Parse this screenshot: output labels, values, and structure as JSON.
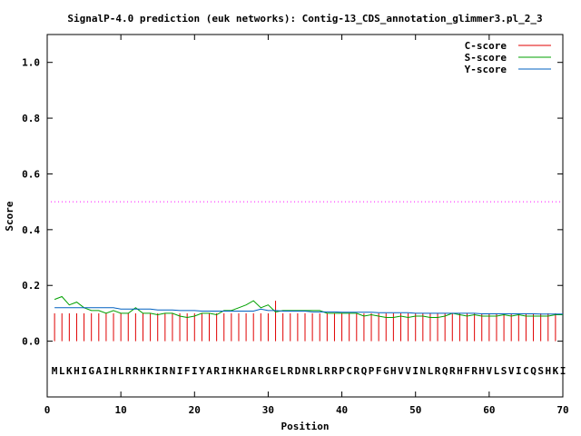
{
  "chart_data": {
    "type": "line",
    "title": "SignalP-4.0 prediction (euk networks): Contig-13_CDS_annotation_glimmer3.pl_2_3",
    "xlabel": "Position",
    "ylabel": "Score",
    "xlim": [
      0,
      70
    ],
    "ylim": [
      -0.2,
      1.1
    ],
    "xticks": [
      0,
      10,
      20,
      30,
      40,
      50,
      60,
      70
    ],
    "yticks": [
      0.0,
      0.2,
      0.4,
      0.6,
      0.8,
      1.0
    ],
    "ytick_labels": [
      "0.0",
      "0.2",
      "0.4",
      "0.6",
      "0.8",
      "1.0"
    ],
    "legend_position": "top-right",
    "threshold": 0.5,
    "threshold_color": "#ff00ff",
    "sequence": "MLKHIGAIHLRRHKIRNIFIYARIHKHARGELRDNRLRRPCRQPFGHVVINLRQRHFRHVLSVICQSHKI",
    "series": [
      {
        "name": "C-score",
        "color": "#e00000",
        "style": "impulse",
        "x": [
          1,
          2,
          3,
          4,
          5,
          6,
          7,
          8,
          9,
          10,
          11,
          12,
          13,
          14,
          15,
          16,
          17,
          18,
          19,
          20,
          21,
          22,
          23,
          24,
          25,
          26,
          27,
          28,
          29,
          30,
          31,
          32,
          33,
          34,
          35,
          36,
          37,
          38,
          39,
          40,
          41,
          42,
          43,
          44,
          45,
          46,
          47,
          48,
          49,
          50,
          51,
          52,
          53,
          54,
          55,
          56,
          57,
          58,
          59,
          60,
          61,
          62,
          63,
          64,
          65,
          66,
          67,
          68,
          69
        ],
        "values": [
          0.1,
          0.1,
          0.1,
          0.1,
          0.1,
          0.1,
          0.1,
          0.1,
          0.1,
          0.1,
          0.1,
          0.1,
          0.1,
          0.1,
          0.1,
          0.1,
          0.1,
          0.1,
          0.1,
          0.1,
          0.1,
          0.1,
          0.1,
          0.1,
          0.1,
          0.1,
          0.1,
          0.1,
          0.1,
          0.1,
          0.145,
          0.1,
          0.1,
          0.1,
          0.1,
          0.1,
          0.1,
          0.1,
          0.1,
          0.1,
          0.1,
          0.1,
          0.1,
          0.1,
          0.1,
          0.1,
          0.1,
          0.1,
          0.1,
          0.1,
          0.1,
          0.1,
          0.1,
          0.1,
          0.1,
          0.1,
          0.1,
          0.1,
          0.1,
          0.1,
          0.1,
          0.1,
          0.1,
          0.1,
          0.1,
          0.1,
          0.1,
          0.1,
          0.1
        ]
      },
      {
        "name": "S-score",
        "color": "#00a000",
        "style": "line",
        "x": [
          1,
          2,
          3,
          4,
          5,
          6,
          7,
          8,
          9,
          10,
          11,
          12,
          13,
          14,
          15,
          16,
          17,
          18,
          19,
          20,
          21,
          22,
          23,
          24,
          25,
          26,
          27,
          28,
          29,
          30,
          31,
          32,
          33,
          34,
          35,
          36,
          37,
          38,
          39,
          40,
          41,
          42,
          43,
          44,
          45,
          46,
          47,
          48,
          49,
          50,
          51,
          52,
          53,
          54,
          55,
          56,
          57,
          58,
          59,
          60,
          61,
          62,
          63,
          64,
          65,
          66,
          67,
          68,
          69,
          70
        ],
        "values": [
          0.15,
          0.16,
          0.13,
          0.14,
          0.12,
          0.11,
          0.11,
          0.1,
          0.11,
          0.1,
          0.1,
          0.12,
          0.1,
          0.1,
          0.095,
          0.1,
          0.1,
          0.09,
          0.085,
          0.09,
          0.1,
          0.1,
          0.095,
          0.11,
          0.11,
          0.12,
          0.13,
          0.145,
          0.12,
          0.13,
          0.105,
          0.11,
          0.11,
          0.11,
          0.11,
          0.11,
          0.11,
          0.1,
          0.1,
          0.1,
          0.1,
          0.1,
          0.09,
          0.095,
          0.09,
          0.085,
          0.085,
          0.09,
          0.085,
          0.09,
          0.09,
          0.085,
          0.085,
          0.09,
          0.1,
          0.095,
          0.09,
          0.095,
          0.09,
          0.09,
          0.09,
          0.095,
          0.09,
          0.095,
          0.09,
          0.09,
          0.09,
          0.09,
          0.095,
          0.095
        ]
      },
      {
        "name": "Y-score",
        "color": "#0060c0",
        "style": "line",
        "x": [
          1,
          2,
          3,
          4,
          5,
          6,
          7,
          8,
          9,
          10,
          11,
          12,
          13,
          14,
          15,
          16,
          17,
          18,
          19,
          20,
          21,
          22,
          23,
          24,
          25,
          26,
          27,
          28,
          29,
          30,
          31,
          32,
          33,
          34,
          35,
          36,
          37,
          38,
          39,
          40,
          41,
          42,
          43,
          44,
          45,
          46,
          47,
          48,
          49,
          50,
          51,
          52,
          53,
          54,
          55,
          56,
          57,
          58,
          59,
          60,
          61,
          62,
          63,
          64,
          65,
          66,
          67,
          68,
          69,
          70
        ],
        "values": [
          0.12,
          0.12,
          0.12,
          0.12,
          0.12,
          0.12,
          0.12,
          0.12,
          0.12,
          0.115,
          0.115,
          0.115,
          0.115,
          0.115,
          0.112,
          0.112,
          0.112,
          0.11,
          0.11,
          0.11,
          0.108,
          0.108,
          0.108,
          0.108,
          0.108,
          0.108,
          0.108,
          0.108,
          0.115,
          0.11,
          0.11,
          0.108,
          0.108,
          0.108,
          0.108,
          0.105,
          0.105,
          0.105,
          0.105,
          0.104,
          0.104,
          0.104,
          0.104,
          0.104,
          0.102,
          0.102,
          0.102,
          0.102,
          0.102,
          0.1,
          0.1,
          0.1,
          0.1,
          0.1,
          0.1,
          0.1,
          0.1,
          0.1,
          0.098,
          0.098,
          0.098,
          0.098,
          0.098,
          0.098,
          0.098,
          0.098,
          0.097,
          0.097,
          0.097,
          0.097
        ]
      }
    ]
  }
}
